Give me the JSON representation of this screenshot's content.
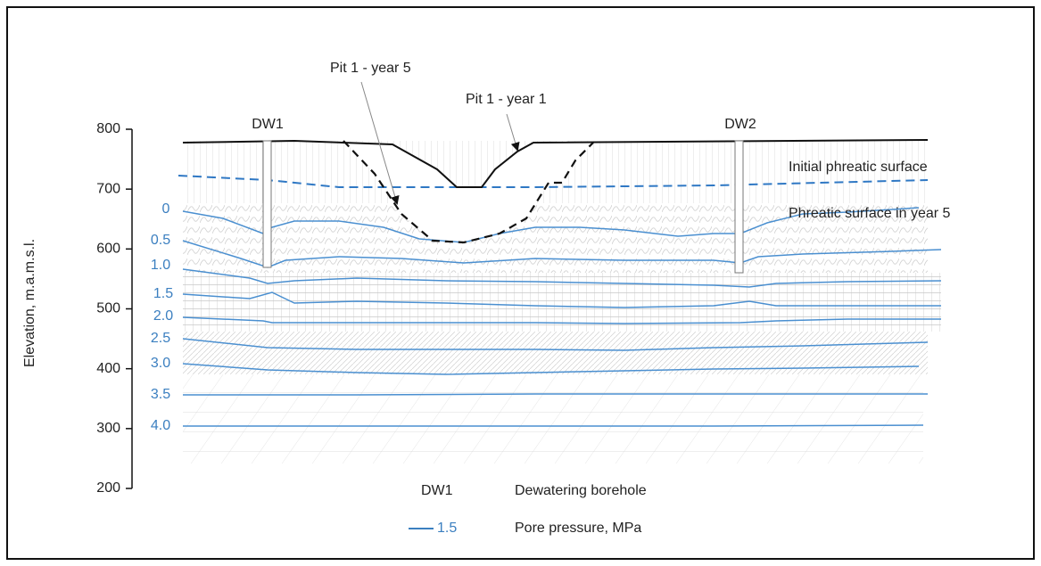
{
  "elevation_axis": {
    "label": "Elevation, m.a.m.s.l.",
    "ylim": [
      200,
      800
    ],
    "yticks": [
      800,
      700,
      600,
      500,
      400,
      300,
      200
    ]
  },
  "annotations": {
    "pit_year5": "Pit 1 - year 5",
    "pit_year1": "Pit 1 - year 1",
    "dw1": "DW1",
    "dw2": "DW2",
    "initial_phreatic": "Initial phreatic surface",
    "phreatic_year5": "Phreatic surface in year 5"
  },
  "contour_labels": [
    "0",
    "0.5",
    "1.0",
    "1.5",
    "2.0",
    "2.5",
    "3.0",
    "3.5",
    "4.0"
  ],
  "legend": {
    "borehole_symbol": "DW1",
    "borehole_text": "Dewatering borehole",
    "pressure_symbol": "1.5",
    "pressure_text": "Pore pressure, MPa"
  }
}
